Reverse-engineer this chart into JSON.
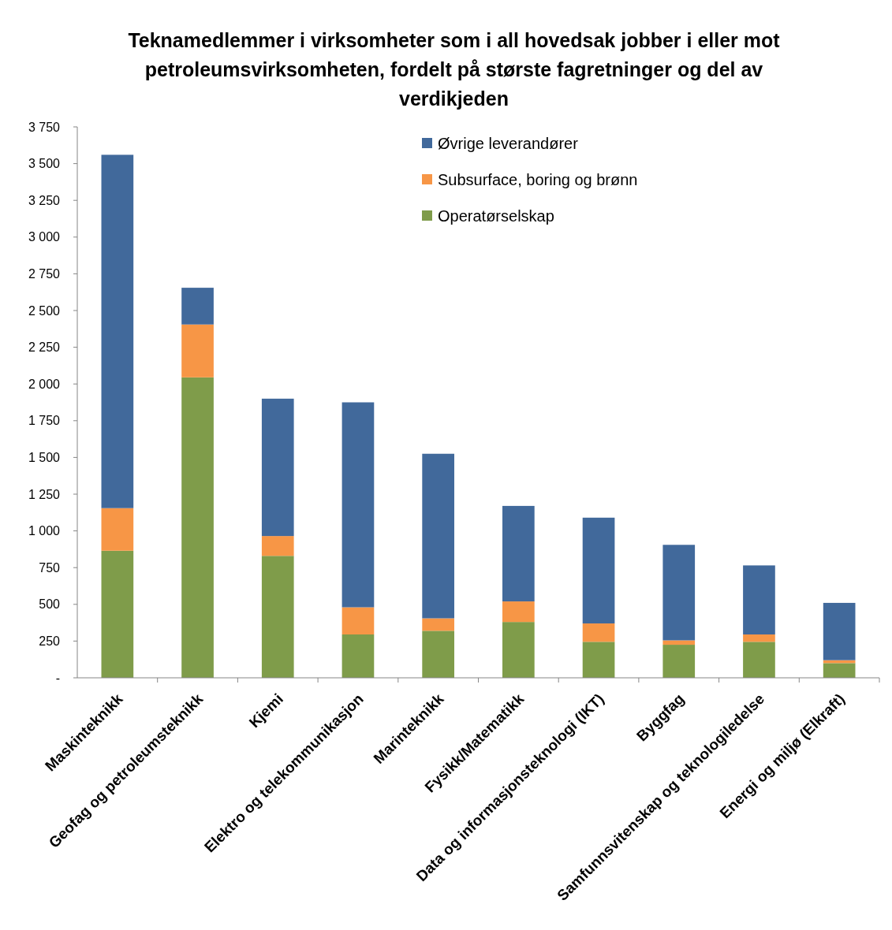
{
  "chart_data": {
    "type": "bar",
    "stacked": true,
    "title": "Teknamedlemmer i virksomheter som i all hovedsak jobber i eller mot petroleumsvirksomheten, fordelt på største fagretninger og del av verdikjeden",
    "categories": [
      "Maskinteknikk",
      "Geofag og petroleumsteknikk",
      "Kjemi",
      "Elektro og telekommunikasjon",
      "Marinteknikk",
      "Fysikk/Matematikk",
      "Data og informasjonsteknologi (IKT)",
      "Byggfag",
      "Samfunnsvitenskap og teknologiledelse",
      "Energi og miljø (Elkraft)"
    ],
    "series": [
      {
        "name": "Operatørselskap",
        "color": "#7f9c4a",
        "values": [
          865,
          2045,
          830,
          295,
          320,
          380,
          245,
          225,
          245,
          100
        ]
      },
      {
        "name": "Subsurface, boring og brønn",
        "color": "#f79646",
        "values": [
          290,
          360,
          135,
          185,
          85,
          140,
          125,
          30,
          50,
          20
        ]
      },
      {
        "name": "Øvrige leverandører",
        "color": "#41699b",
        "values": [
          2405,
          250,
          935,
          1395,
          1120,
          650,
          720,
          650,
          470,
          390
        ]
      }
    ],
    "ylim": [
      0,
      3750
    ],
    "yticks": [
      {
        "value": 0,
        "label": "-"
      },
      {
        "value": 250,
        "label": "250"
      },
      {
        "value": 500,
        "label": "500"
      },
      {
        "value": 750,
        "label": "750"
      },
      {
        "value": 1000,
        "label": "1 000"
      },
      {
        "value": 1250,
        "label": "1 250"
      },
      {
        "value": 1500,
        "label": "1 500"
      },
      {
        "value": 1750,
        "label": "1 750"
      },
      {
        "value": 2000,
        "label": "2 000"
      },
      {
        "value": 2250,
        "label": "2 250"
      },
      {
        "value": 2500,
        "label": "2 500"
      },
      {
        "value": 2750,
        "label": "2 750"
      },
      {
        "value": 3000,
        "label": "3 000"
      },
      {
        "value": 3250,
        "label": "3 250"
      },
      {
        "value": 3500,
        "label": "3 500"
      },
      {
        "value": 3750,
        "label": "3 750"
      }
    ],
    "legend": "top right",
    "grid": false
  }
}
